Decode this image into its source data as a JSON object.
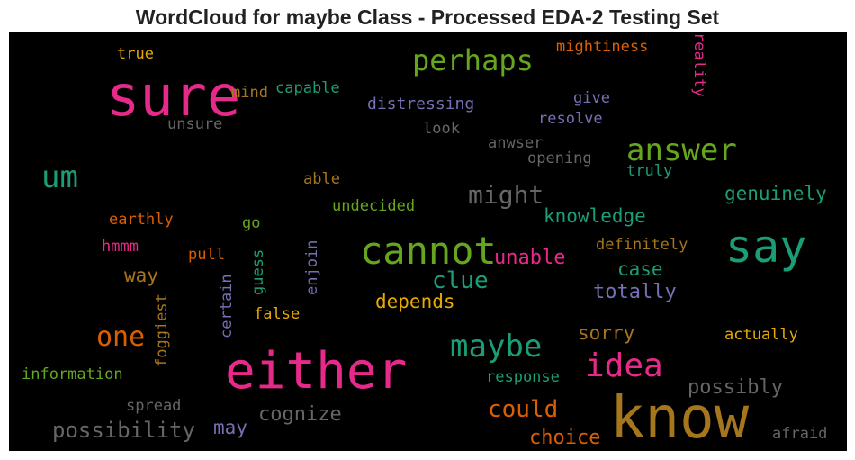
{
  "title": "WordCloud for maybe Class - Processed EDA-2 Testing Set",
  "colors": {
    "background": "#000000",
    "pink": "#e7298a",
    "green": "#1b9e77",
    "lime": "#66a61e",
    "orange": "#d95f02",
    "purple": "#7570b3",
    "gold": "#e6ab02",
    "brown": "#a6761d",
    "gray": "#666666"
  },
  "words": [
    {
      "text": "sure",
      "color": "pink"
    },
    {
      "text": "either",
      "color": "pink"
    },
    {
      "text": "know",
      "color": "brown"
    },
    {
      "text": "say",
      "color": "green"
    },
    {
      "text": "cannot",
      "color": "lime"
    },
    {
      "text": "answer",
      "color": "lime"
    },
    {
      "text": "perhaps",
      "color": "lime"
    },
    {
      "text": "maybe",
      "color": "green"
    },
    {
      "text": "idea",
      "color": "pink"
    },
    {
      "text": "um",
      "color": "green"
    },
    {
      "text": "one",
      "color": "orange"
    },
    {
      "text": "might",
      "color": "gray"
    },
    {
      "text": "clue",
      "color": "green"
    },
    {
      "text": "could",
      "color": "orange"
    },
    {
      "text": "possibility",
      "color": "gray"
    },
    {
      "text": "cognize",
      "color": "gray"
    },
    {
      "text": "possibly",
      "color": "gray"
    },
    {
      "text": "choice",
      "color": "orange"
    },
    {
      "text": "genuinely",
      "color": "green"
    },
    {
      "text": "unable",
      "color": "pink"
    },
    {
      "text": "knowledge",
      "color": "green"
    },
    {
      "text": "totally",
      "color": "purple"
    },
    {
      "text": "depends",
      "color": "gold"
    },
    {
      "text": "sorry",
      "color": "brown"
    },
    {
      "text": "case",
      "color": "green"
    },
    {
      "text": "way",
      "color": "brown"
    },
    {
      "text": "may",
      "color": "purple"
    },
    {
      "text": "distressing",
      "color": "purple"
    },
    {
      "text": "capable",
      "color": "green"
    },
    {
      "text": "mind",
      "color": "brown"
    },
    {
      "text": "unsure",
      "color": "gray"
    },
    {
      "text": "true",
      "color": "gold"
    },
    {
      "text": "mightiness",
      "color": "orange"
    },
    {
      "text": "reality",
      "color": "pink"
    },
    {
      "text": "give",
      "color": "purple"
    },
    {
      "text": "resolve",
      "color": "purple"
    },
    {
      "text": "look",
      "color": "gray"
    },
    {
      "text": "anwser",
      "color": "gray"
    },
    {
      "text": "opening",
      "color": "gray"
    },
    {
      "text": "truly",
      "color": "green"
    },
    {
      "text": "able",
      "color": "brown"
    },
    {
      "text": "undecided",
      "color": "lime"
    },
    {
      "text": "earthly",
      "color": "orange"
    },
    {
      "text": "go",
      "color": "lime"
    },
    {
      "text": "hmmm",
      "color": "pink"
    },
    {
      "text": "pull",
      "color": "orange"
    },
    {
      "text": "guess",
      "color": "green"
    },
    {
      "text": "enjoin",
      "color": "purple"
    },
    {
      "text": "certain",
      "color": "purple"
    },
    {
      "text": "foggiest",
      "color": "brown"
    },
    {
      "text": "false",
      "color": "gold"
    },
    {
      "text": "definitely",
      "color": "brown"
    },
    {
      "text": "actually",
      "color": "gold"
    },
    {
      "text": "information",
      "color": "lime"
    },
    {
      "text": "response",
      "color": "green"
    },
    {
      "text": "spread",
      "color": "gray"
    },
    {
      "text": "afraid",
      "color": "gray"
    }
  ]
}
